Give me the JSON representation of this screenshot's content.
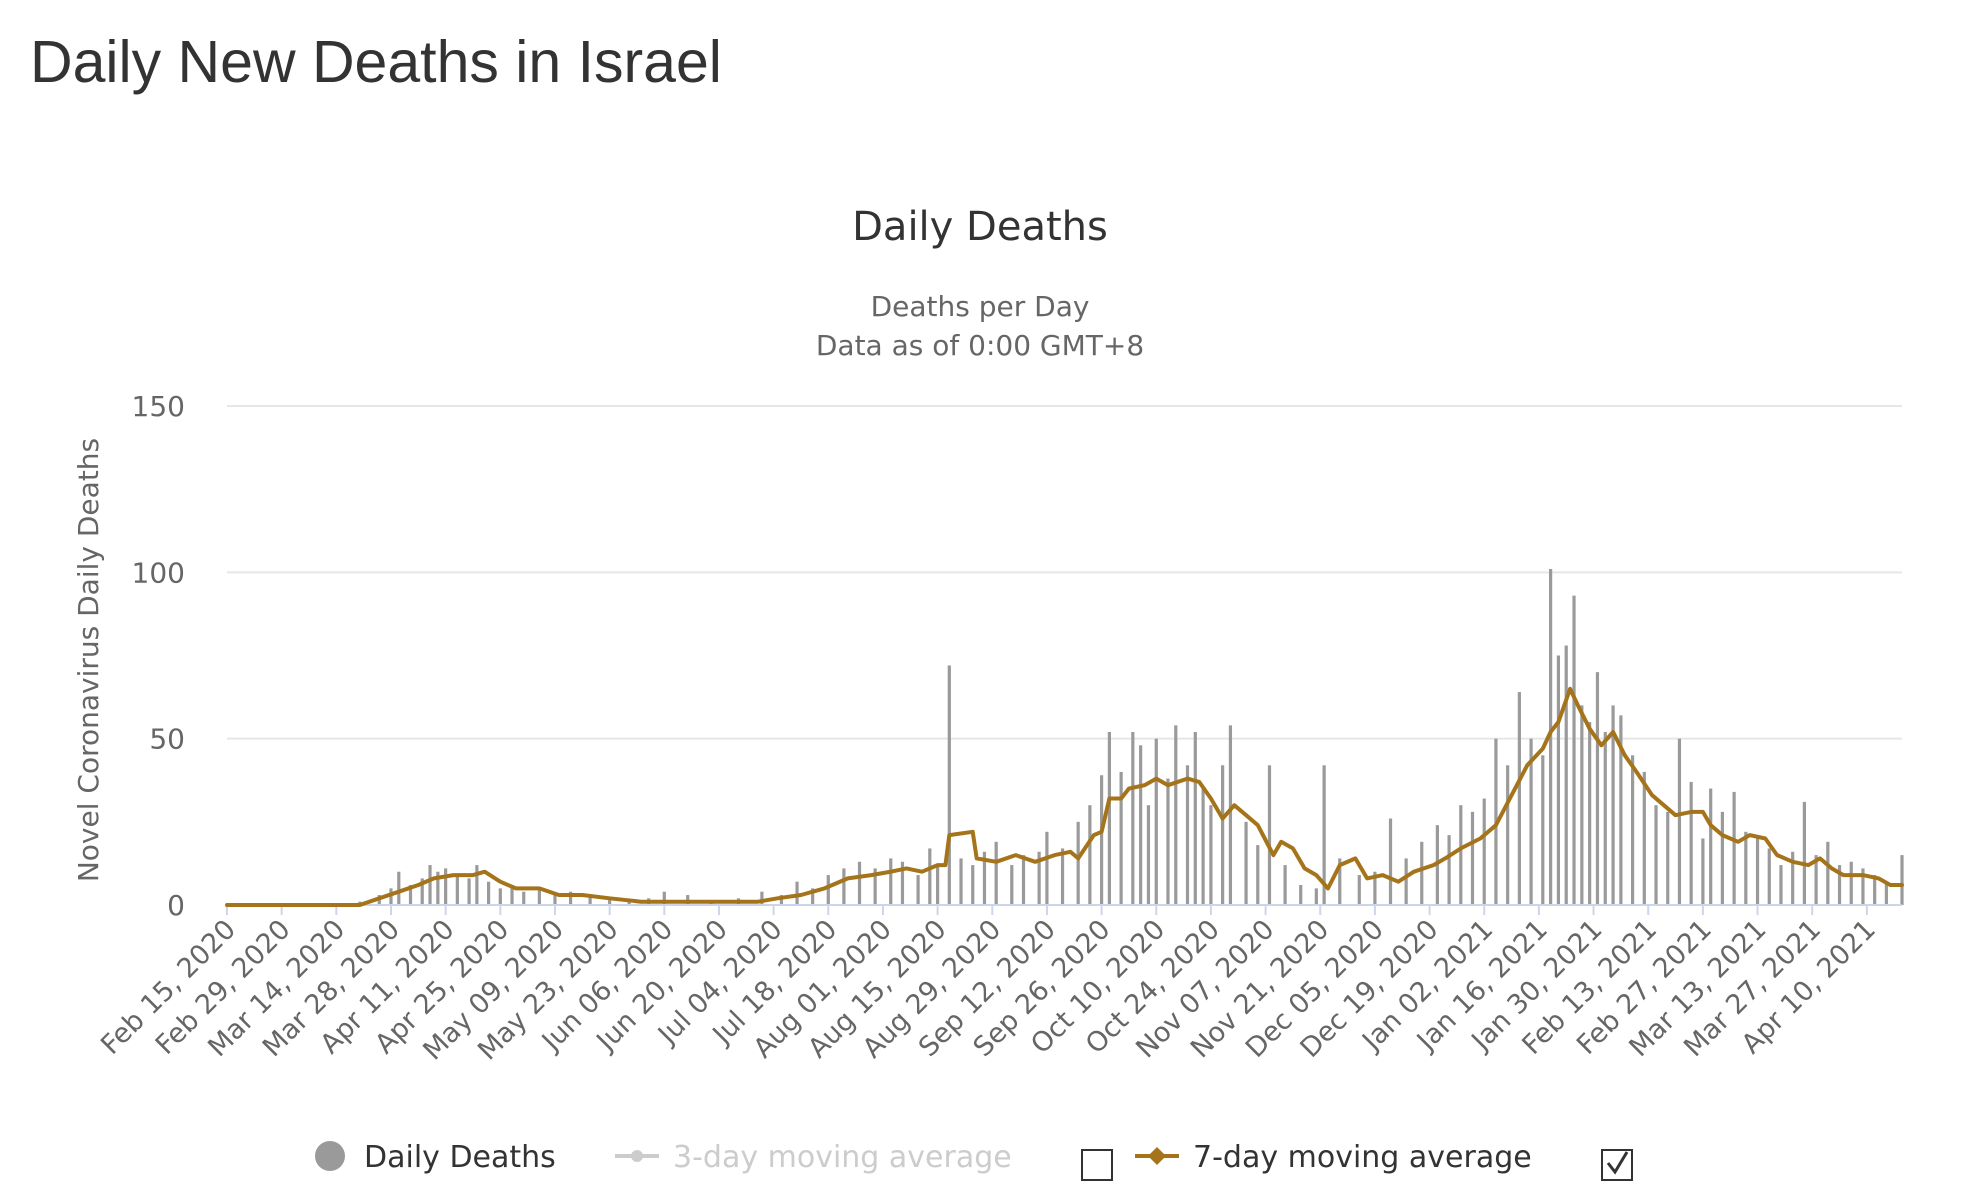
{
  "page": {
    "title": "Daily New Deaths in Israel"
  },
  "chart_data": {
    "type": "bar",
    "title": "Daily Deaths",
    "subtitle": [
      "Deaths per Day",
      "Data as of 0:00 GMT+8"
    ],
    "xlabel": "",
    "ylabel": "Novel Coronavirus Daily Deaths",
    "ylim": [
      0,
      150
    ],
    "yticks": [
      0,
      50,
      100,
      150
    ],
    "grid": true,
    "legend_position": "bottom",
    "colors": {
      "bars": "#9a9a9a",
      "avg3": "#cfcfcf",
      "avg7": "#a5741a",
      "grid": "#e6e6e6",
      "axis": "#ccd6eb",
      "text": "#333333",
      "muted": "#666666",
      "disabled": "#cccccc"
    },
    "x_ticks": [
      "Feb 15, 2020",
      "Feb 29, 2020",
      "Mar 14, 2020",
      "Mar 28, 2020",
      "Apr 11, 2020",
      "Apr 25, 2020",
      "May 09, 2020",
      "May 23, 2020",
      "Jun 06, 2020",
      "Jun 20, 2020",
      "Jul 04, 2020",
      "Jul 18, 2020",
      "Aug 01, 2020",
      "Aug 15, 2020",
      "Aug 29, 2020",
      "Sep 12, 2020",
      "Sep 26, 2020",
      "Oct 10, 2020",
      "Oct 24, 2020",
      "Nov 07, 2020",
      "Nov 21, 2020",
      "Dec 05, 2020",
      "Dec 19, 2020",
      "Jan 02, 2021",
      "Jan 16, 2021",
      "Jan 30, 2021",
      "Feb 13, 2021",
      "Feb 27, 2021",
      "Mar 13, 2021",
      "Mar 27, 2021",
      "Apr 10, 2021"
    ],
    "x_range": [
      "Feb 15, 2020",
      "Apr 19, 2021"
    ],
    "series": [
      {
        "name": "Daily Deaths",
        "kind": "bar",
        "points": [
          [
            "Mar 20, 2020",
            1
          ],
          [
            "Mar 25, 2020",
            3
          ],
          [
            "Mar 28, 2020",
            5
          ],
          [
            "Mar 30, 2020",
            10
          ],
          [
            "Apr 02, 2020",
            6
          ],
          [
            "Apr 05, 2020",
            8
          ],
          [
            "Apr 07, 2020",
            12
          ],
          [
            "Apr 09, 2020",
            10
          ],
          [
            "Apr 11, 2020",
            11
          ],
          [
            "Apr 14, 2020",
            9
          ],
          [
            "Apr 17, 2020",
            8
          ],
          [
            "Apr 19, 2020",
            12
          ],
          [
            "Apr 22, 2020",
            7
          ],
          [
            "Apr 25, 2020",
            5
          ],
          [
            "Apr 28, 2020",
            6
          ],
          [
            "May 01, 2020",
            4
          ],
          [
            "May 05, 2020",
            5
          ],
          [
            "May 09, 2020",
            3
          ],
          [
            "May 13, 2020",
            4
          ],
          [
            "May 18, 2020",
            3
          ],
          [
            "May 23, 2020",
            2
          ],
          [
            "May 28, 2020",
            1
          ],
          [
            "Jun 02, 2020",
            2
          ],
          [
            "Jun 06, 2020",
            4
          ],
          [
            "Jun 12, 2020",
            3
          ],
          [
            "Jun 18, 2020",
            1
          ],
          [
            "Jun 25, 2020",
            2
          ],
          [
            "Jul 01, 2020",
            4
          ],
          [
            "Jul 06, 2020",
            3
          ],
          [
            "Jul 10, 2020",
            7
          ],
          [
            "Jul 14, 2020",
            5
          ],
          [
            "Jul 18, 2020",
            9
          ],
          [
            "Jul 22, 2020",
            11
          ],
          [
            "Jul 26, 2020",
            13
          ],
          [
            "Jul 30, 2020",
            11
          ],
          [
            "Aug 03, 2020",
            14
          ],
          [
            "Aug 06, 2020",
            13
          ],
          [
            "Aug 10, 2020",
            9
          ],
          [
            "Aug 13, 2020",
            17
          ],
          [
            "Aug 15, 2020",
            12
          ],
          [
            "Aug 18, 2020",
            72
          ],
          [
            "Aug 21, 2020",
            14
          ],
          [
            "Aug 24, 2020",
            12
          ],
          [
            "Aug 27, 2020",
            16
          ],
          [
            "Aug 30, 2020",
            19
          ],
          [
            "Sep 03, 2020",
            12
          ],
          [
            "Sep 06, 2020",
            15
          ],
          [
            "Sep 10, 2020",
            16
          ],
          [
            "Sep 12, 2020",
            22
          ],
          [
            "Sep 16, 2020",
            17
          ],
          [
            "Sep 20, 2020",
            25
          ],
          [
            "Sep 23, 2020",
            30
          ],
          [
            "Sep 26, 2020",
            39
          ],
          [
            "Sep 28, 2020",
            52
          ],
          [
            "Oct 01, 2020",
            40
          ],
          [
            "Oct 04, 2020",
            52
          ],
          [
            "Oct 06, 2020",
            48
          ],
          [
            "Oct 08, 2020",
            30
          ],
          [
            "Oct 10, 2020",
            50
          ],
          [
            "Oct 13, 2020",
            38
          ],
          [
            "Oct 15, 2020",
            54
          ],
          [
            "Oct 18, 2020",
            42
          ],
          [
            "Oct 20, 2020",
            52
          ],
          [
            "Oct 22, 2020",
            35
          ],
          [
            "Oct 24, 2020",
            30
          ],
          [
            "Oct 27, 2020",
            42
          ],
          [
            "Oct 29, 2020",
            54
          ],
          [
            "Nov 02, 2020",
            25
          ],
          [
            "Nov 05, 2020",
            18
          ],
          [
            "Nov 08, 2020",
            42
          ],
          [
            "Nov 12, 2020",
            12
          ],
          [
            "Nov 16, 2020",
            6
          ],
          [
            "Nov 20, 2020",
            5
          ],
          [
            "Nov 22, 2020",
            42
          ],
          [
            "Nov 26, 2020",
            14
          ],
          [
            "Dec 01, 2020",
            9
          ],
          [
            "Dec 05, 2020",
            10
          ],
          [
            "Dec 09, 2020",
            26
          ],
          [
            "Dec 13, 2020",
            14
          ],
          [
            "Dec 17, 2020",
            19
          ],
          [
            "Dec 21, 2020",
            24
          ],
          [
            "Dec 24, 2020",
            21
          ],
          [
            "Dec 27, 2020",
            30
          ],
          [
            "Dec 30, 2020",
            28
          ],
          [
            "Jan 02, 2021",
            32
          ],
          [
            "Jan 05, 2021",
            50
          ],
          [
            "Jan 08, 2021",
            42
          ],
          [
            "Jan 11, 2021",
            64
          ],
          [
            "Jan 14, 2021",
            50
          ],
          [
            "Jan 17, 2021",
            45
          ],
          [
            "Jan 19, 2021",
            101
          ],
          [
            "Jan 21, 2021",
            75
          ],
          [
            "Jan 23, 2021",
            78
          ],
          [
            "Jan 25, 2021",
            93
          ],
          [
            "Jan 27, 2021",
            60
          ],
          [
            "Jan 29, 2021",
            55
          ],
          [
            "Jan 31, 2021",
            70
          ],
          [
            "Feb 02, 2021",
            52
          ],
          [
            "Feb 04, 2021",
            60
          ],
          [
            "Feb 06, 2021",
            57
          ],
          [
            "Feb 09, 2021",
            45
          ],
          [
            "Feb 12, 2021",
            40
          ],
          [
            "Feb 15, 2021",
            30
          ],
          [
            "Feb 18, 2021",
            28
          ],
          [
            "Feb 21, 2021",
            50
          ],
          [
            "Feb 24, 2021",
            37
          ],
          [
            "Feb 27, 2021",
            20
          ],
          [
            "Mar 01, 2021",
            35
          ],
          [
            "Mar 04, 2021",
            28
          ],
          [
            "Mar 07, 2021",
            34
          ],
          [
            "Mar 10, 2021",
            22
          ],
          [
            "Mar 13, 2021",
            20
          ],
          [
            "Mar 16, 2021",
            17
          ],
          [
            "Mar 19, 2021",
            12
          ],
          [
            "Mar 22, 2021",
            16
          ],
          [
            "Mar 25, 2021",
            31
          ],
          [
            "Mar 28, 2021",
            15
          ],
          [
            "Mar 31, 2021",
            19
          ],
          [
            "Apr 03, 2021",
            12
          ],
          [
            "Apr 06, 2021",
            13
          ],
          [
            "Apr 09, 2021",
            11
          ],
          [
            "Apr 12, 2021",
            9
          ],
          [
            "Apr 15, 2021",
            7
          ],
          [
            "Apr 19, 2021",
            15
          ]
        ]
      },
      {
        "name": "3-day moving average",
        "kind": "line",
        "visible": false,
        "points": []
      },
      {
        "name": "7-day moving average",
        "kind": "line",
        "visible": true,
        "points": [
          [
            "Feb 15, 2020",
            0
          ],
          [
            "Mar 20, 2020",
            0
          ],
          [
            "Mar 25, 2020",
            2
          ],
          [
            "Mar 30, 2020",
            4
          ],
          [
            "Apr 04, 2020",
            6
          ],
          [
            "Apr 08, 2020",
            8
          ],
          [
            "Apr 13, 2020",
            9
          ],
          [
            "Apr 18, 2020",
            9
          ],
          [
            "Apr 21, 2020",
            10
          ],
          [
            "Apr 25, 2020",
            7
          ],
          [
            "Apr 29, 2020",
            5
          ],
          [
            "May 05, 2020",
            5
          ],
          [
            "May 10, 2020",
            3
          ],
          [
            "May 16, 2020",
            3
          ],
          [
            "May 23, 2020",
            2
          ],
          [
            "May 31, 2020",
            1
          ],
          [
            "Jun 10, 2020",
            1
          ],
          [
            "Jun 20, 2020",
            1
          ],
          [
            "Jun 30, 2020",
            1
          ],
          [
            "Jul 05, 2020",
            2
          ],
          [
            "Jul 11, 2020",
            3
          ],
          [
            "Jul 17, 2020",
            5
          ],
          [
            "Jul 23, 2020",
            8
          ],
          [
            "Jul 29, 2020",
            9
          ],
          [
            "Aug 03, 2020",
            10
          ],
          [
            "Aug 07, 2020",
            11
          ],
          [
            "Aug 11, 2020",
            10
          ],
          [
            "Aug 15, 2020",
            12
          ],
          [
            "Aug 17, 2020",
            12
          ],
          [
            "Aug 18, 2020",
            21
          ],
          [
            "Aug 24, 2020",
            22
          ],
          [
            "Aug 25, 2020",
            14
          ],
          [
            "Aug 30, 2020",
            13
          ],
          [
            "Sep 04, 2020",
            15
          ],
          [
            "Sep 09, 2020",
            13
          ],
          [
            "Sep 14, 2020",
            15
          ],
          [
            "Sep 18, 2020",
            16
          ],
          [
            "Sep 20, 2020",
            14
          ],
          [
            "Sep 24, 2020",
            21
          ],
          [
            "Sep 26, 2020",
            22
          ],
          [
            "Sep 28, 2020",
            32
          ],
          [
            "Oct 01, 2020",
            32
          ],
          [
            "Oct 03, 2020",
            35
          ],
          [
            "Oct 07, 2020",
            36
          ],
          [
            "Oct 10, 2020",
            38
          ],
          [
            "Oct 13, 2020",
            36
          ],
          [
            "Oct 18, 2020",
            38
          ],
          [
            "Oct 21, 2020",
            37
          ],
          [
            "Oct 24, 2020",
            32
          ],
          [
            "Oct 27, 2020",
            26
          ],
          [
            "Oct 30, 2020",
            30
          ],
          [
            "Nov 02, 2020",
            27
          ],
          [
            "Nov 05, 2020",
            24
          ],
          [
            "Nov 09, 2020",
            15
          ],
          [
            "Nov 11, 2020",
            19
          ],
          [
            "Nov 14, 2020",
            17
          ],
          [
            "Nov 17, 2020",
            11
          ],
          [
            "Nov 20, 2020",
            9
          ],
          [
            "Nov 23, 2020",
            5
          ],
          [
            "Nov 26, 2020",
            12
          ],
          [
            "Nov 30, 2020",
            14
          ],
          [
            "Dec 03, 2020",
            8
          ],
          [
            "Dec 07, 2020",
            9
          ],
          [
            "Dec 11, 2020",
            7
          ],
          [
            "Dec 15, 2020",
            10
          ],
          [
            "Dec 20, 2020",
            12
          ],
          [
            "Dec 23, 2020",
            14
          ],
          [
            "Dec 27, 2020",
            17
          ],
          [
            "Jan 01, 2021",
            20
          ],
          [
            "Jan 05, 2021",
            24
          ],
          [
            "Jan 09, 2021",
            33
          ],
          [
            "Jan 13, 2021",
            42
          ],
          [
            "Jan 17, 2021",
            47
          ],
          [
            "Jan 19, 2021",
            52
          ],
          [
            "Jan 21, 2021",
            55
          ],
          [
            "Jan 24, 2021",
            65
          ],
          [
            "Jan 26, 2021",
            60
          ],
          [
            "Jan 29, 2021",
            53
          ],
          [
            "Feb 01, 2021",
            48
          ],
          [
            "Feb 04, 2021",
            52
          ],
          [
            "Feb 07, 2021",
            45
          ],
          [
            "Feb 10, 2021",
            40
          ],
          [
            "Feb 14, 2021",
            33
          ],
          [
            "Feb 17, 2021",
            30
          ],
          [
            "Feb 20, 2021",
            27
          ],
          [
            "Feb 24, 2021",
            28
          ],
          [
            "Feb 27, 2021",
            28
          ],
          [
            "Mar 01, 2021",
            24
          ],
          [
            "Mar 04, 2021",
            21
          ],
          [
            "Mar 08, 2021",
            19
          ],
          [
            "Mar 11, 2021",
            21
          ],
          [
            "Mar 15, 2021",
            20
          ],
          [
            "Mar 18, 2021",
            15
          ],
          [
            "Mar 22, 2021",
            13
          ],
          [
            "Mar 26, 2021",
            12
          ],
          [
            "Mar 29, 2021",
            14
          ],
          [
            "Apr 01, 2021",
            11
          ],
          [
            "Apr 04, 2021",
            9
          ],
          [
            "Apr 09, 2021",
            9
          ],
          [
            "Apr 13, 2021",
            8
          ],
          [
            "Apr 16, 2021",
            6
          ],
          [
            "Apr 19, 2021",
            6
          ]
        ]
      }
    ]
  }
}
